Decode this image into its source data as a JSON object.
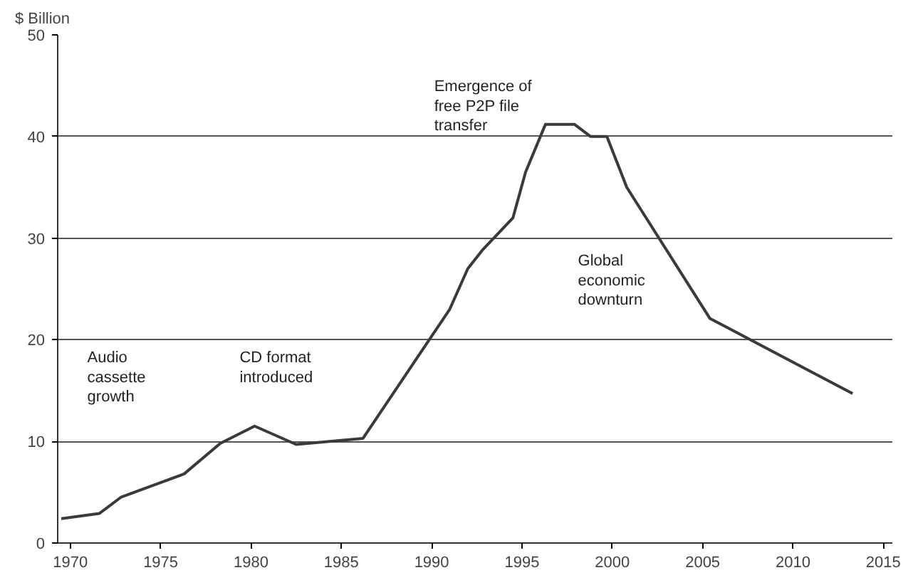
{
  "chart_data": {
    "type": "line",
    "ylabel": "$ Billion",
    "x": [
      1969.5,
      1971.6,
      1972.8,
      1976.3,
      1978.3,
      1980.2,
      1982.5,
      1986.2,
      1991,
      1992,
      1992.8,
      1994.5,
      1995.2,
      1996.3,
      1997.9,
      1998.8,
      1999.7,
      2000.8,
      2005.4,
      2013.3
    ],
    "series": [
      {
        "color": "#3a3a3a",
        "values": [
          2.4,
          2.9,
          4.5,
          6.8,
          9.8,
          11.5,
          9.7,
          10.3,
          23,
          27,
          28.8,
          32,
          36.5,
          41.2,
          41.2,
          40,
          40,
          35,
          22.1,
          14.7
        ]
      }
    ],
    "xlim": [
      1969.3,
      2015.5
    ],
    "ylim": [
      0,
      50
    ],
    "xticks": [
      1970,
      1975,
      1980,
      1985,
      1990,
      1995,
      2000,
      2005,
      2010,
      2015
    ],
    "yticks": [
      0,
      10,
      20,
      30,
      40,
      50
    ],
    "grid": "y",
    "marker": "none",
    "line_style": "solid",
    "annotations": [
      "Audio\ncassette\ngrowth",
      "CD format\nintroduced",
      "Emergence of\nfree P2P file\ntransfer",
      "Global\neconomic\ndownturn"
    ]
  }
}
